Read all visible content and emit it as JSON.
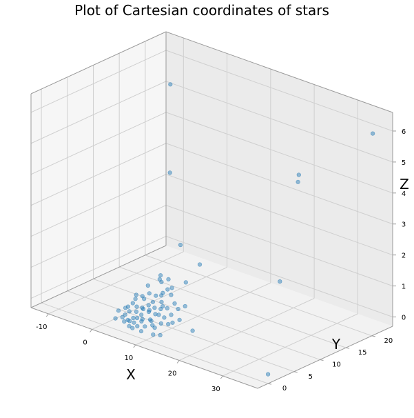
{
  "chart_data": {
    "type": "scatter",
    "title": "Plot of Cartesian coordinates of stars",
    "xlabel": "X",
    "ylabel": "Y",
    "zlabel": "Z",
    "xlim": [
      -14,
      38
    ],
    "ylim": [
      -2,
      24
    ],
    "zlim": [
      -0.3,
      6.6
    ],
    "xticks": [
      -10,
      0,
      10,
      20,
      30
    ],
    "yticks": [
      0,
      5,
      10,
      15,
      20
    ],
    "zticks": [
      0,
      1,
      2,
      3,
      4,
      5,
      6
    ],
    "grid": true,
    "legend": "none",
    "series": [
      {
        "color": "#1f77b4",
        "points": [
          [
            37.0,
            21.0,
            6.1
          ],
          [
            -3.0,
            15.6,
            6.1
          ],
          [
            26.0,
            16.0,
            4.6
          ],
          [
            27.0,
            15.0,
            4.5
          ],
          [
            0.0,
            13.0,
            3.6
          ],
          [
            14.0,
            7.0,
            1.8
          ],
          [
            30.0,
            9.0,
            1.9
          ],
          [
            38.0,
            0.0,
            0.0
          ],
          [
            6.0,
            10.0,
            1.8
          ],
          [
            5.0,
            7.0,
            1.0
          ],
          [
            12.0,
            6.0,
            1.2
          ],
          [
            15.0,
            2.0,
            0.8
          ],
          [
            9.0,
            5.0,
            0.9
          ],
          [
            10.0,
            3.0,
            0.7
          ],
          [
            16.0,
            2.5,
            0.9
          ],
          [
            19.5,
            1.0,
            0.4
          ],
          [
            3.0,
            4.0,
            0.5
          ],
          [
            6.0,
            4.0,
            0.7
          ],
          [
            15.5,
            0.5,
            0.5
          ],
          [
            10.5,
            0.6,
            0.3
          ],
          [
            8.5,
            0.4,
            0.2
          ],
          [
            13.5,
            -0.2,
            0.05
          ],
          [
            12.0,
            -0.3,
            0.0
          ],
          [
            7.0,
            2.0,
            0.4
          ],
          [
            9.0,
            1.5,
            0.5
          ],
          [
            5.0,
            1.0,
            0.3
          ],
          [
            11.0,
            2.0,
            0.6
          ],
          [
            8.0,
            3.0,
            0.6
          ],
          [
            13.0,
            1.0,
            0.5
          ],
          [
            6.5,
            0.5,
            0.2
          ],
          [
            7.5,
            1.2,
            0.3
          ],
          [
            10.0,
            0.8,
            0.3
          ],
          [
            9.5,
            0.2,
            0.1
          ],
          [
            8.0,
            0.0,
            0.05
          ],
          [
            6.0,
            0.2,
            0.1
          ],
          [
            4.5,
            0.6,
            0.2
          ],
          [
            5.5,
            2.0,
            0.4
          ],
          [
            3.5,
            1.5,
            0.3
          ],
          [
            4.0,
            2.5,
            0.4
          ],
          [
            6.0,
            3.0,
            0.6
          ],
          [
            11.5,
            1.2,
            0.5
          ],
          [
            12.5,
            2.0,
            0.7
          ],
          [
            14.0,
            1.5,
            0.6
          ],
          [
            7.0,
            0.2,
            0.1
          ],
          [
            5.0,
            0.0,
            0.05
          ],
          [
            6.5,
            -0.3,
            0.0
          ],
          [
            8.5,
            1.8,
            0.4
          ],
          [
            10.5,
            2.8,
            0.6
          ],
          [
            9.0,
            3.8,
            0.8
          ],
          [
            7.5,
            2.6,
            0.5
          ],
          [
            4.0,
            0.5,
            0.1
          ],
          [
            3.0,
            0.0,
            0.05
          ],
          [
            2.5,
            1.0,
            0.2
          ],
          [
            5.0,
            3.5,
            0.6
          ],
          [
            4.5,
            5.0,
            0.8
          ],
          [
            7.0,
            5.5,
            1.0
          ],
          [
            8.0,
            6.0,
            1.1
          ],
          [
            11.0,
            4.0,
            0.9
          ],
          [
            13.0,
            3.0,
            0.8
          ],
          [
            12.0,
            0.0,
            0.2
          ],
          [
            14.5,
            0.5,
            0.4
          ],
          [
            16.5,
            1.0,
            0.6
          ],
          [
            9.5,
            -0.5,
            0.0
          ],
          [
            7.5,
            -0.5,
            0.0
          ],
          [
            6.0,
            1.5,
            0.3
          ],
          [
            7.0,
            0.8,
            0.2
          ],
          [
            5.5,
            0.3,
            0.1
          ],
          [
            8.0,
            1.0,
            0.2
          ],
          [
            6.5,
            2.2,
            0.4
          ],
          [
            9.0,
            2.5,
            0.5
          ],
          [
            10.0,
            1.8,
            0.4
          ],
          [
            11.0,
            0.4,
            0.2
          ],
          [
            12.5,
            0.8,
            0.3
          ],
          [
            4.0,
            3.0,
            0.5
          ],
          [
            3.5,
            2.0,
            0.3
          ],
          [
            8.5,
            4.5,
            0.8
          ],
          [
            10.0,
            5.0,
            1.0
          ],
          [
            6.0,
            6.0,
            1.0
          ],
          [
            7.5,
            4.0,
            0.7
          ]
        ]
      }
    ]
  }
}
